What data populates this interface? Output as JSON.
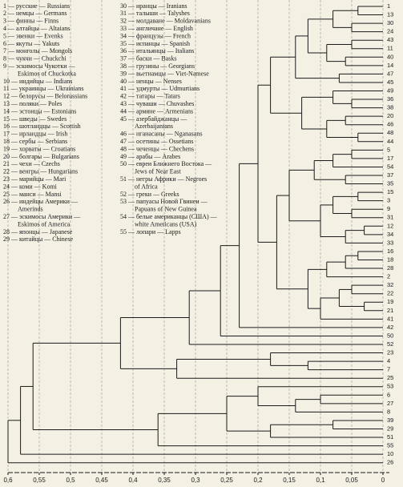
{
  "chart_data": {
    "type": "dendrogram",
    "legend": [
      [
        [
          "1 — русские — Russians"
        ],
        [
          "2 — немцы — Germans"
        ],
        [
          "3 — финны — Finns"
        ],
        [
          "4 — алтайцы — Altaians"
        ],
        [
          "5 — эвенки — Evenks"
        ],
        [
          "6 — якуты — Yakuts"
        ],
        [
          "7 — монголы — Mongols"
        ],
        [
          "8 — чукчи — Chuckchi"
        ],
        [
          "9 — эскимосы Чукотки —",
          "Eskimos of Chuckotka"
        ],
        [
          "10 — индийцы — Indians"
        ],
        [
          "11 — украинцы — Ukrainians"
        ],
        [
          "12 — белорусы — Belorussians"
        ],
        [
          "13 — поляки — Poles"
        ],
        [
          "14 — эстонцы — Estonians"
        ],
        [
          "15 — шведы — Swedes"
        ],
        [
          "16 — шотландцы — Scottish"
        ],
        [
          "17 — ирландцы — Irish"
        ],
        [
          "18 — сербы — Serbians"
        ],
        [
          "19 — хорваты — Croatians"
        ],
        [
          "20 — болгары — Bulgarians"
        ],
        [
          "21 — чехи — Czechs"
        ],
        [
          "22 — венгры — Hungarians"
        ],
        [
          "23 — марийцы — Mari"
        ],
        [
          "24 — коми — Komi"
        ],
        [
          "25 — манси — Mansi"
        ],
        [
          "26 — индейцы Америки —",
          "Amerinds"
        ],
        [
          "27 — эскимосы Америки —",
          "Eskimos of America"
        ],
        [
          "28 — японцы — Japanese"
        ],
        [
          "29 — китайцы — Chinese"
        ]
      ],
      [
        [
          "30 — иранцы — Iranians"
        ],
        [
          "31 — талыши — Talyshes"
        ],
        [
          "32 — молдаване — Moldavanians"
        ],
        [
          "33 — англичане — English"
        ],
        [
          "34 — французы — French"
        ],
        [
          "35 — испанцы — Spanish"
        ],
        [
          "36 — итальянцы — Italians"
        ],
        [
          "37 — баски — Basks"
        ],
        [
          "38 — грузины — Georgians"
        ],
        [
          "39 — вьетнамцы — Viet-Namese"
        ],
        [
          "40 — ненцы — Nenses"
        ],
        [
          "41 — удмурты — Udmurtians"
        ],
        [
          "42 — татары — Tatars"
        ],
        [
          "43 — чуваши — Chuvashes"
        ],
        [
          "44 — армяне — Armenians"
        ],
        [
          "45 — азербайджанцы —",
          "Azerbaijanians"
        ],
        [
          "46 — нганасаны — Nganasans"
        ],
        [
          "47 — осетины — Ossetians"
        ],
        [
          "48 — чеченцы — Chechens"
        ],
        [
          "49 — арабы — Arabes"
        ],
        [
          "50 — евреи Ближнего Востока —",
          "Jews of Near East"
        ],
        [
          "51 — негры Африки — Negroes",
          "of Africa"
        ],
        [
          "52 — греки — Greeks"
        ],
        [
          "53 — папуасы Новой Гвинеи —",
          "Papuans of New Guinea"
        ],
        [
          "54 — белые американцы (США) —",
          "white Americans (USA)"
        ],
        [
          "55 — лопари — Lapps"
        ]
      ]
    ],
    "tree": {
      "h": 0.6,
      "c": [
        {
          "h": 0.58,
          "c": [
            {
              "h": 0.56,
              "c": [
                {
                  "h": 0.42,
                  "c": [
                    {
                      "h": 0.31,
                      "c": [
                        {
                          "h": 0.26,
                          "c": [
                            {
                              "h": 0.23,
                              "c": [
                                {
                                  "h": 0.2,
                                  "c": [
                                    {
                                      "h": 0.18,
                                      "c": [
                                        {
                                          "h": 0.14,
                                          "c": [
                                            {
                                              "h": 0.12,
                                              "c": [
                                                {
                                                  "h": 0.08,
                                                  "c": [
                                                    {
                                                      "h": 0.04,
                                                      "c": [
                                                        "1",
                                                        "13"
                                                      ]
                                                    },
                                                    {
                                                      "h": 0.05,
                                                      "c": [
                                                        "30",
                                                        "24"
                                                      ]
                                                    }
                                                  ]
                                                },
                                                {
                                                  "h": 0.09,
                                                  "c": [
                                                    {
                                                      "h": 0.05,
                                                      "c": [
                                                        "43",
                                                        "11"
                                                      ]
                                                    },
                                                    {
                                                      "h": 0.06,
                                                      "c": [
                                                        "40",
                                                        "14"
                                                      ]
                                                    }
                                                  ]
                                                }
                                              ]
                                            },
                                            {
                                              "h": 0.07,
                                              "c": [
                                                "47",
                                                "45"
                                              ]
                                            }
                                          ]
                                        },
                                        {
                                          "h": 0.13,
                                          "c": [
                                            {
                                              "h": 0.08,
                                              "c": [
                                                "49",
                                                {
                                                  "h": 0.05,
                                                  "c": [
                                                    "36",
                                                    "38"
                                                  ]
                                                }
                                              ]
                                            },
                                            {
                                              "h": 0.09,
                                              "c": [
                                                {
                                                  "h": 0.06,
                                                  "c": [
                                                    "20",
                                                    "46"
                                                  ]
                                                },
                                                {
                                                  "h": 0.04,
                                                  "c": [
                                                    "48",
                                                    "44"
                                                  ]
                                                }
                                              ]
                                            }
                                          ]
                                        }
                                      ]
                                    },
                                    {
                                      "h": 0.17,
                                      "c": [
                                        {
                                          "h": 0.15,
                                          "c": [
                                            {
                                              "h": 0.11,
                                              "c": [
                                                {
                                                  "h": 0.08,
                                                  "c": [
                                                    {
                                                      "h": 0.05,
                                                      "c": [
                                                        "5",
                                                        "17"
                                                      ]
                                                    },
                                                    "54"
                                                  ]
                                                },
                                                {
                                                  "h": 0.06,
                                                  "c": [
                                                    "37",
                                                    "35"
                                                  ]
                                                }
                                              ]
                                            },
                                            {
                                              "h": 0.1,
                                              "c": [
                                                {
                                                  "h": 0.08,
                                                  "c": [
                                                    {
                                                      "h": 0.04,
                                                      "c": [
                                                        "15",
                                                        "3"
                                                      ]
                                                    },
                                                    {
                                                      "h": 0.05,
                                                      "c": [
                                                        "9",
                                                        "31"
                                                      ]
                                                    }
                                                  ]
                                                },
                                                {
                                                  "h": 0.06,
                                                  "c": [
                                                    {
                                                      "h": 0.03,
                                                      "c": [
                                                        "12",
                                                        "34"
                                                      ]
                                                    },
                                                    "33"
                                                  ]
                                                }
                                              ]
                                            }
                                          ]
                                        },
                                        {
                                          "h": 0.12,
                                          "c": [
                                            {
                                              "h": 0.09,
                                              "c": [
                                                {
                                                  "h": 0.06,
                                                  "c": [
                                                    {
                                                      "h": 0.04,
                                                      "c": [
                                                        "16",
                                                        "18"
                                                      ]
                                                    },
                                                    "28"
                                                  ]
                                                },
                                                "2"
                                              ]
                                            },
                                            {
                                              "h": 0.1,
                                              "c": [
                                                {
                                                  "h": 0.07,
                                                  "c": [
                                                    {
                                                      "h": 0.05,
                                                      "c": [
                                                        "32",
                                                        "22"
                                                      ]
                                                    },
                                                    {
                                                      "h": 0.03,
                                                      "c": [
                                                        "19",
                                                        "21"
                                                      ]
                                                    }
                                                  ]
                                                },
                                                "41"
                                              ]
                                            }
                                          ]
                                        }
                                      ]
                                    }
                                  ]
                                },
                                "42"
                              ]
                            },
                            "50"
                          ]
                        },
                        "52"
                      ]
                    },
                    {
                      "h": 0.33,
                      "c": [
                        {
                          "h": 0.18,
                          "c": [
                            "23",
                            {
                              "h": 0.12,
                              "c": [
                                "4",
                                "7"
                              ]
                            }
                          ]
                        },
                        "25"
                      ]
                    }
                  ]
                },
                {
                  "h": 0.36,
                  "c": [
                    {
                      "h": 0.25,
                      "c": [
                        {
                          "h": 0.2,
                          "c": [
                            "53",
                            {
                              "h": 0.14,
                              "c": [
                                {
                                  "h": 0.1,
                                  "c": [
                                    "6",
                                    "27"
                                  ]
                                },
                                "8"
                              ]
                            }
                          ]
                        },
                        {
                          "h": 0.18,
                          "c": [
                            {
                              "h": 0.08,
                              "c": [
                                "39",
                                "29"
                              ]
                            },
                            "51"
                          ]
                        }
                      ]
                    },
                    "55"
                  ]
                }
              ]
            },
            "10"
          ]
        },
        "26"
      ]
    },
    "xlim": [
      0.6,
      0
    ],
    "xticks": [
      {
        "value": 0.6,
        "label": "0,6"
      },
      {
        "value": 0.55,
        "label": "0,55"
      },
      {
        "value": 0.5,
        "label": "0,5"
      },
      {
        "value": 0.45,
        "label": "0,45"
      },
      {
        "value": 0.4,
        "label": "0,4"
      },
      {
        "value": 0.35,
        "label": "0,35"
      },
      {
        "value": 0.3,
        "label": "0,3"
      },
      {
        "value": 0.25,
        "label": "0,25"
      },
      {
        "value": 0.2,
        "label": "0,2"
      },
      {
        "value": 0.15,
        "label": "0,15"
      },
      {
        "value": 0.1,
        "label": "0,1"
      },
      {
        "value": 0.05,
        "label": "0,05"
      },
      0
    ],
    "grid": true,
    "color": "#1a1a1a"
  }
}
